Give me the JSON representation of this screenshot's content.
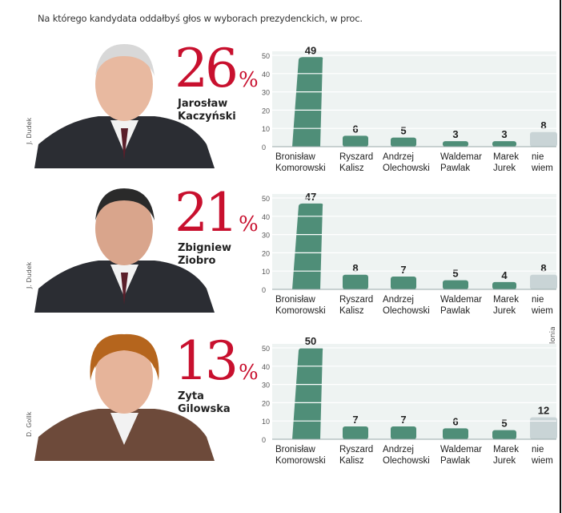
{
  "title": "Na którego kandydata oddałbyś głos w wyborach prezydenckich, w proc.",
  "source": "źródło: GfK Polonia",
  "colors": {
    "accent": "#c8102e",
    "bar": "#4f8e78",
    "bar_neutral": "#c9d4d6"
  },
  "panels": [
    {
      "percent": "26",
      "percent_sign": "%",
      "name_line1": "Jarosław",
      "name_line2": "Kaczyński",
      "credit": "J. Dudek"
    },
    {
      "percent": "21",
      "percent_sign": "%",
      "name_line1": "Zbigniew",
      "name_line2": "Ziobro",
      "credit": "J. Dudek"
    },
    {
      "percent": "13",
      "percent_sign": "%",
      "name_line1": "Zyta",
      "name_line2": "Gilowska",
      "credit": "D. Gollk"
    }
  ],
  "chart_data": [
    {
      "type": "bar",
      "title": "Jarosław Kaczyński 26%",
      "categories": [
        [
          "Bronisław",
          "Komorowski"
        ],
        [
          "Ryszard",
          "Kalisz"
        ],
        [
          "Andrzej",
          "Olechowski"
        ],
        [
          "Waldemar",
          "Pawlak"
        ],
        [
          "Marek",
          "Jurek"
        ],
        [
          "nie",
          "wiem"
        ]
      ],
      "values": [
        49,
        6,
        5,
        3,
        3,
        8
      ],
      "yticks": [
        0,
        10,
        20,
        30,
        40,
        50
      ],
      "ylim": [
        0,
        50
      ],
      "grid": true
    },
    {
      "type": "bar",
      "title": "Zbigniew Ziobro 21%",
      "categories": [
        [
          "Bronisław",
          "Komorowski"
        ],
        [
          "Ryszard",
          "Kalisz"
        ],
        [
          "Andrzej",
          "Olechowski"
        ],
        [
          "Waldemar",
          "Pawlak"
        ],
        [
          "Marek",
          "Jurek"
        ],
        [
          "nie",
          "wiem"
        ]
      ],
      "values": [
        47,
        8,
        7,
        5,
        4,
        8
      ],
      "yticks": [
        0,
        10,
        20,
        30,
        40,
        50
      ],
      "ylim": [
        0,
        50
      ],
      "grid": true
    },
    {
      "type": "bar",
      "title": "Zyta Gilowska 13%",
      "categories": [
        [
          "Bronisław",
          "Komorowski"
        ],
        [
          "Ryszard",
          "Kalisz"
        ],
        [
          "Andrzej",
          "Olechowski"
        ],
        [
          "Waldemar",
          "Pawlak"
        ],
        [
          "Marek",
          "Jurek"
        ],
        [
          "nie",
          "wiem"
        ]
      ],
      "values": [
        50,
        7,
        7,
        6,
        5,
        12
      ],
      "yticks": [
        0,
        10,
        20,
        30,
        40,
        50
      ],
      "ylim": [
        0,
        50
      ],
      "grid": true
    }
  ]
}
